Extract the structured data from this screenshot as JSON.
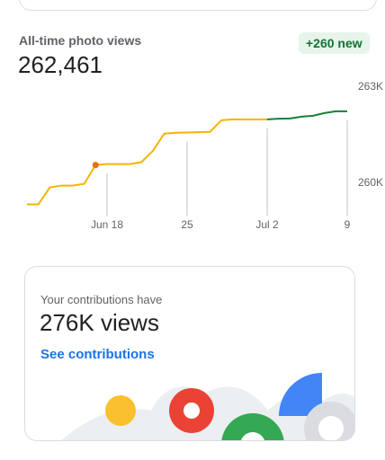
{
  "header": {
    "title": "All-time photo views",
    "total": "262,461",
    "badge": "+260 new"
  },
  "chart_data": {
    "type": "line",
    "categories": [
      null,
      null,
      null,
      null,
      null,
      null,
      null,
      "Jun 18",
      null,
      null,
      null,
      null,
      null,
      null,
      "25",
      null,
      null,
      null,
      null,
      null,
      null,
      "Jul 2",
      null,
      null,
      null,
      null,
      null,
      null,
      "9"
    ],
    "series": [
      {
        "color": "#f4b400",
        "values": [
          259327,
          259327,
          259860,
          259916,
          259916,
          259970,
          260561,
          260589,
          260589,
          260589,
          260650,
          261000,
          261542,
          261570,
          261580,
          261590,
          261598,
          261963,
          261991,
          261991,
          261991,
          261991,
          null,
          null,
          null,
          null,
          null,
          null,
          null
        ]
      },
      {
        "color": "#188038",
        "values": [
          null,
          null,
          null,
          null,
          null,
          null,
          null,
          null,
          null,
          null,
          null,
          null,
          null,
          null,
          null,
          null,
          null,
          null,
          null,
          null,
          null,
          261991,
          262010,
          262019,
          262075,
          262103,
          262187,
          262243,
          262243
        ]
      }
    ],
    "marker": {
      "index": 6,
      "color": "#e8710a"
    },
    "ylim": [
      259200,
      263000
    ],
    "yticks": [
      {
        "value": 260000,
        "label": "260K"
      },
      {
        "value": 263000,
        "label": "263K"
      }
    ],
    "grid": true
  },
  "card": {
    "line1": "Your contributions have",
    "views": "276K views",
    "link": "See contributions"
  }
}
